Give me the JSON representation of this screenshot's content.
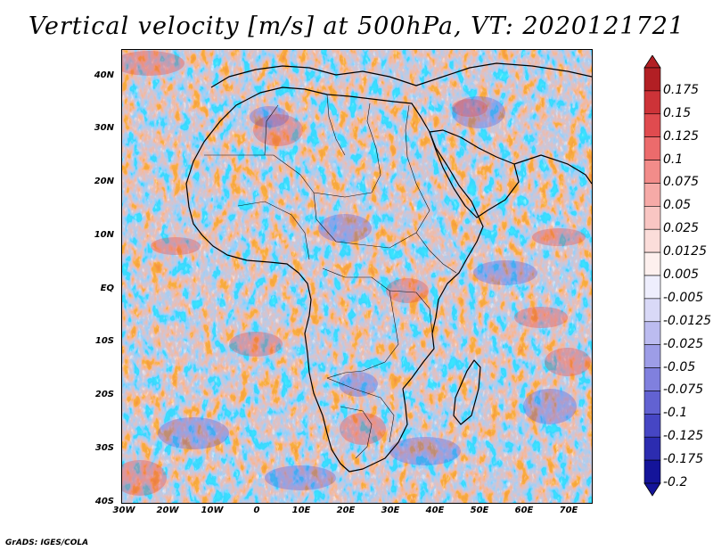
{
  "title": "Vertical velocity [m/s] at 500hPa, VT: 2020121721",
  "footer": "GrADS: IGES/COLA",
  "lat_labels": [
    "40N",
    "30N",
    "20N",
    "10N",
    "EQ",
    "10S",
    "20S",
    "30S",
    "40S"
  ],
  "lon_labels": [
    "30W",
    "20W",
    "10W",
    "0",
    "10E",
    "20E",
    "30E",
    "40E",
    "50E",
    "60E",
    "70E"
  ],
  "map": {
    "lon_range": [
      -30,
      75
    ],
    "lat_range": [
      -40,
      45
    ],
    "variable": "Vertical velocity",
    "units": "m/s",
    "level": "500hPa"
  },
  "colorbar": {
    "labels": [
      "0.175",
      "0.15",
      "0.125",
      "0.1",
      "0.075",
      "0.05",
      "0.025",
      "0.0125",
      "0.005",
      "-0.005",
      "-0.0125",
      "-0.025",
      "-0.05",
      "-0.075",
      "-0.1",
      "-0.125",
      "-0.175",
      "-0.2"
    ],
    "colors": [
      "#b21f24",
      "#cd3338",
      "#e04b4f",
      "#ec6b6c",
      "#f28c8a",
      "#f6aaa7",
      "#f9c6c3",
      "#fbddda",
      "#fdf0ee",
      "#eeeefd",
      "#d9d9f7",
      "#bcbcf0",
      "#9d9de7",
      "#8080de",
      "#6262d2",
      "#4646c4",
      "#2c2cb0",
      "#14149a"
    ]
  },
  "colors": {
    "red_anom": "#e0484b",
    "blue_anom": "#5858d8",
    "coast": "#000000"
  }
}
